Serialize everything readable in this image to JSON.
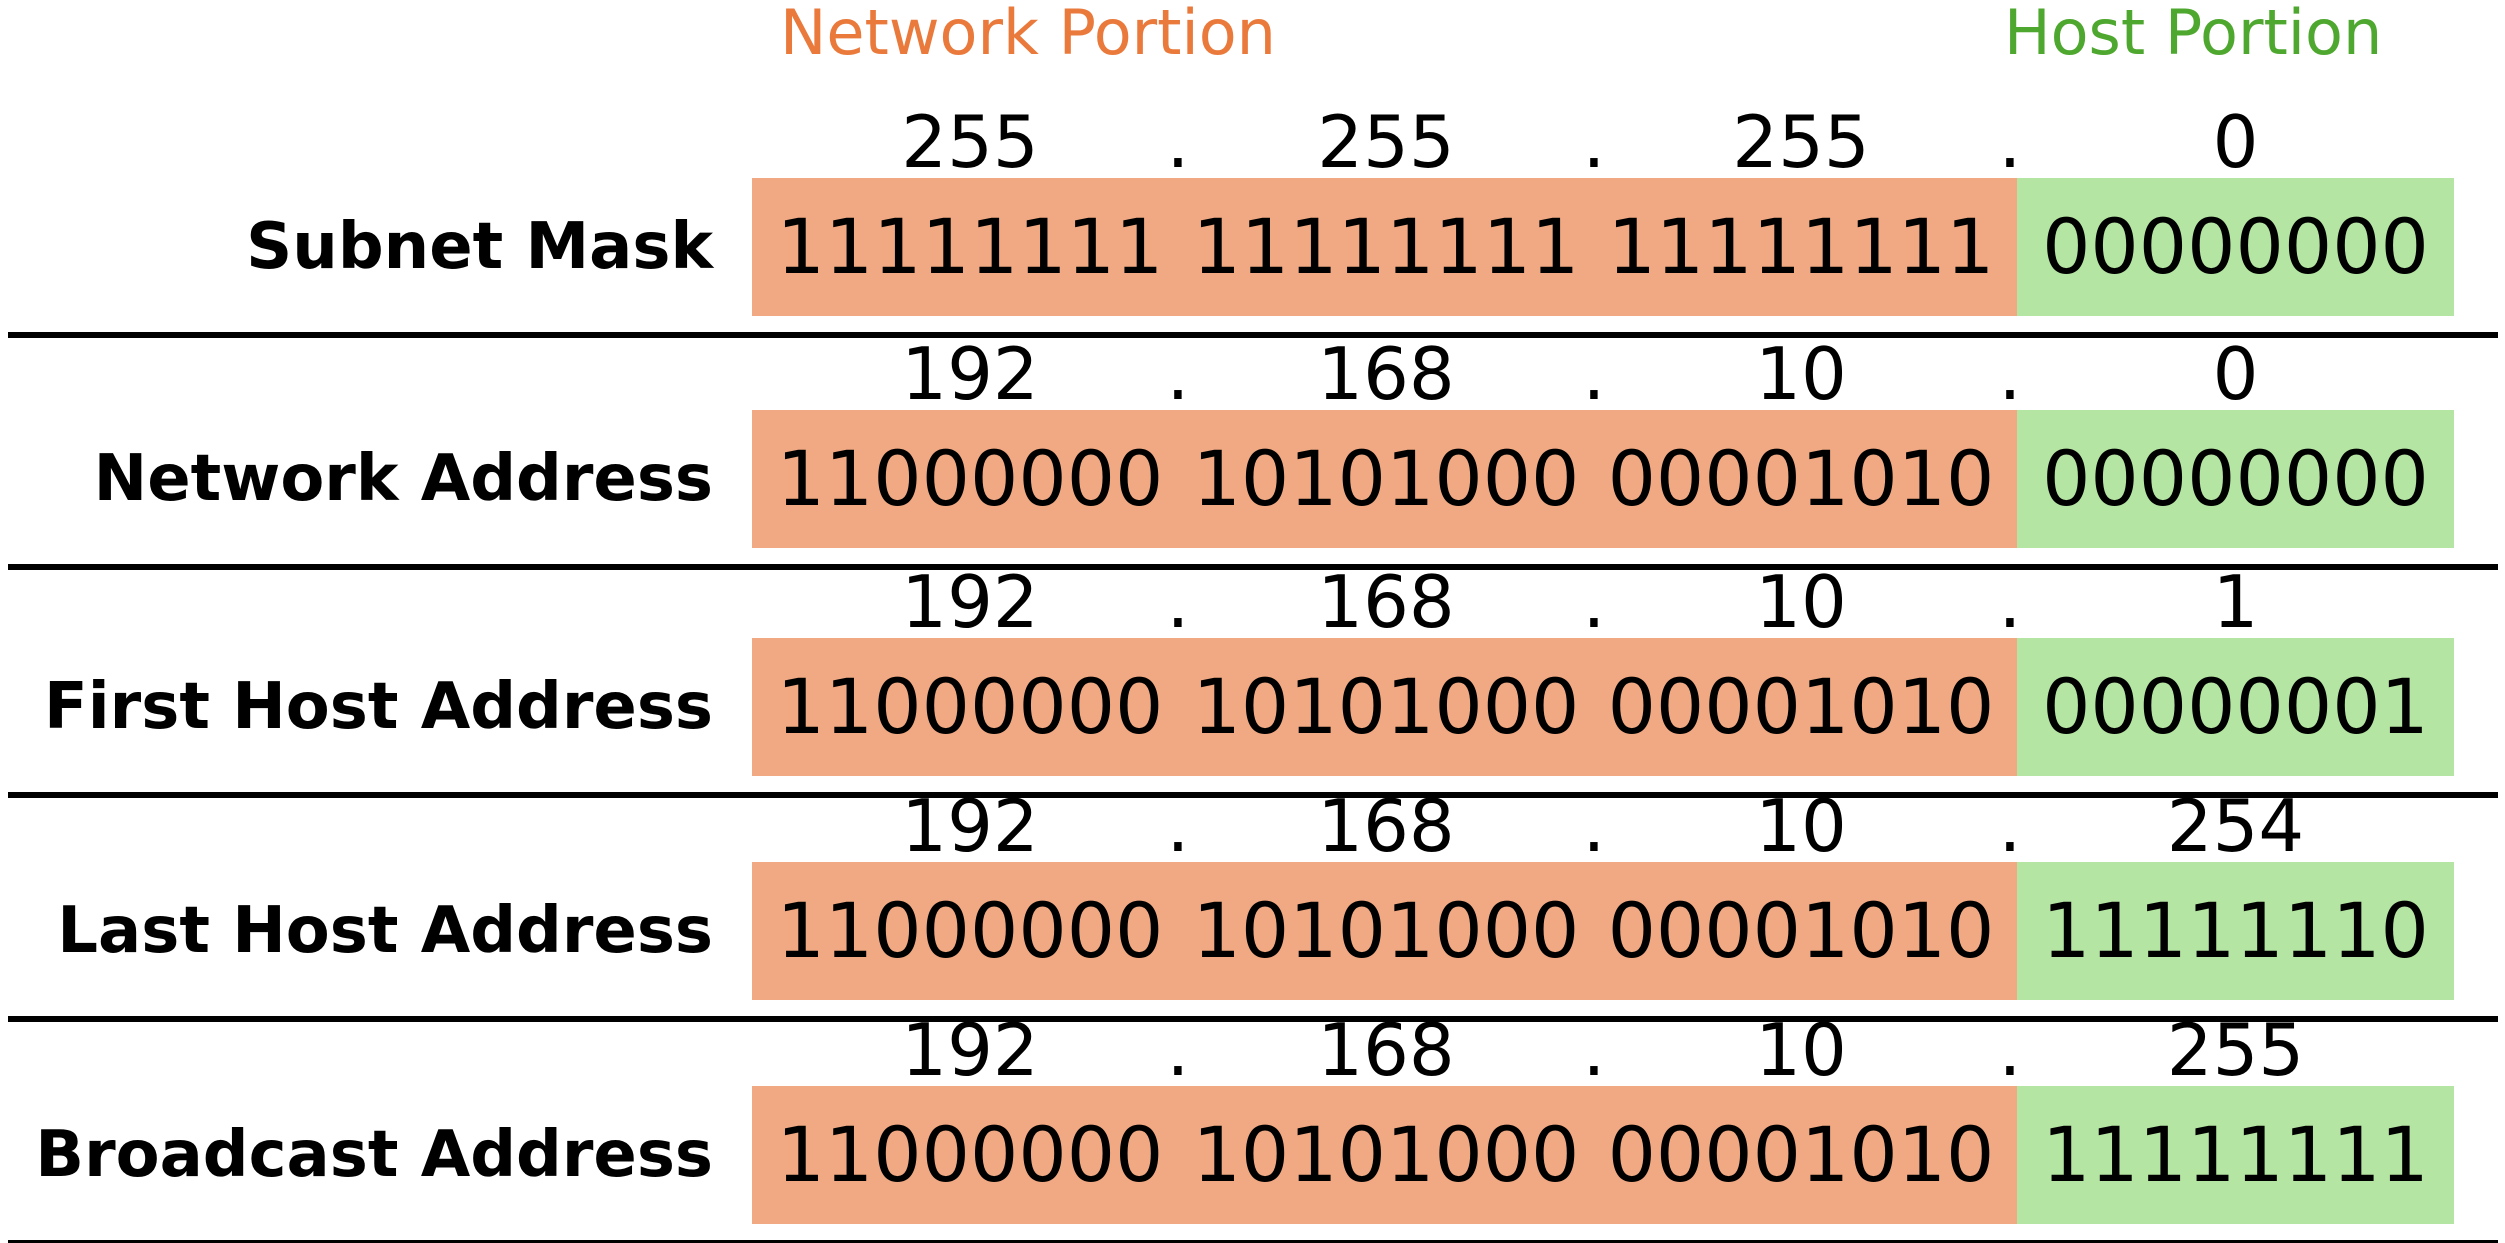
{
  "header": {
    "network_portion": "Network Portion",
    "host_portion": "Host Portion"
  },
  "colors": {
    "network_label": "#ea7a3c",
    "host_label": "#4ea72e",
    "network_fill": "#f1a983",
    "host_fill": "#b4e5a2",
    "separator": "#000000"
  },
  "rows": [
    {
      "label": "Subnet Mask",
      "decimal": [
        "255",
        "255",
        "255",
        "0"
      ],
      "dots": [
        ".",
        ".",
        "."
      ],
      "binary": [
        "11111111",
        "11111111",
        "11111111",
        "00000000"
      ]
    },
    {
      "label": "Network Address",
      "decimal": [
        "192",
        "168",
        "10",
        "0"
      ],
      "dots": [
        ".",
        ".",
        "."
      ],
      "binary": [
        "11000000",
        "10101000",
        "00001010",
        "00000000"
      ]
    },
    {
      "label": "First Host Address",
      "decimal": [
        "192",
        "168",
        "10",
        "1"
      ],
      "dots": [
        ".",
        ".",
        "."
      ],
      "binary": [
        "11000000",
        "10101000",
        "00001010",
        "00000001"
      ]
    },
    {
      "label": "Last Host Address",
      "decimal": [
        "192",
        "168",
        "10",
        "254"
      ],
      "dots": [
        ".",
        ".",
        "."
      ],
      "binary": [
        "11000000",
        "10101000",
        "00001010",
        "11111110"
      ]
    },
    {
      "label": "Broadcast Address",
      "decimal": [
        "192",
        "168",
        "10",
        "255"
      ],
      "dots": [
        ".",
        ".",
        "."
      ],
      "binary": [
        "11000000",
        "10101000",
        "00001010",
        "11111111"
      ]
    }
  ]
}
